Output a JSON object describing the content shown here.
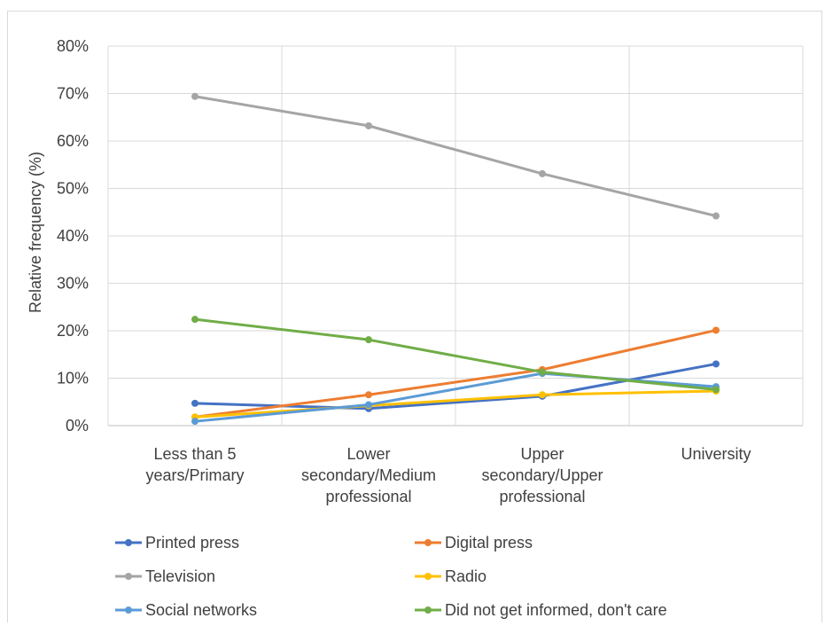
{
  "chart_data": {
    "type": "line",
    "ylabel": "Relative frequency (%)",
    "xlabel": "",
    "ylim": [
      0,
      80
    ],
    "yticks": [
      "0%",
      "10%",
      "20%",
      "30%",
      "40%",
      "50%",
      "60%",
      "70%",
      "80%"
    ],
    "categories": [
      [
        "Less than 5",
        "years/Primary"
      ],
      [
        "Lower",
        "secondary/Medium",
        "professional"
      ],
      [
        "Upper",
        "secondary/Upper",
        "professional"
      ],
      [
        "University"
      ]
    ],
    "grid": true,
    "legend_position": "bottom",
    "series": [
      {
        "name": "Printed press",
        "color": "#4472C4",
        "values": [
          4.7,
          3.6,
          6.2,
          13.0
        ]
      },
      {
        "name": "Digital press",
        "color": "#ED7D31",
        "values": [
          1.8,
          6.5,
          11.8,
          20.1
        ]
      },
      {
        "name": "Television",
        "color": "#A5A5A5",
        "values": [
          69.4,
          63.2,
          53.1,
          44.2
        ]
      },
      {
        "name": "Radio",
        "color": "#FFC000",
        "values": [
          1.8,
          4.2,
          6.5,
          7.3
        ]
      },
      {
        "name": "Social networks",
        "color": "#5B9BD5",
        "values": [
          0.9,
          4.4,
          11.0,
          8.2
        ]
      },
      {
        "name": "Did not get informed, don't care",
        "color": "#70AD47",
        "values": [
          22.4,
          18.1,
          11.3,
          7.6
        ]
      }
    ]
  }
}
